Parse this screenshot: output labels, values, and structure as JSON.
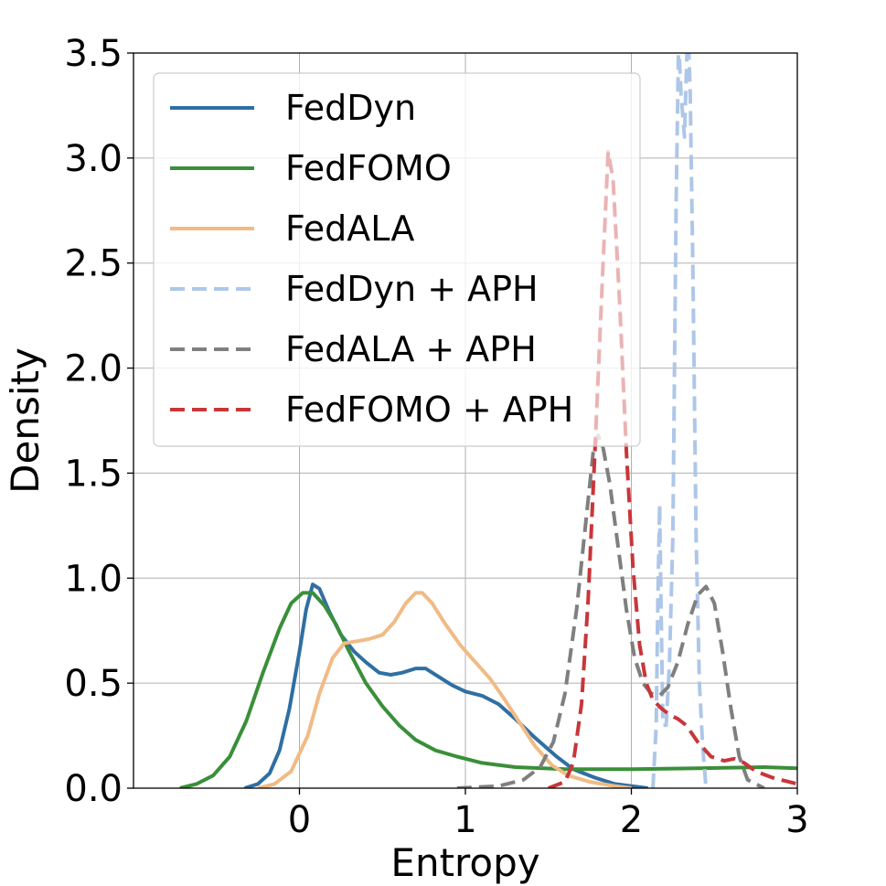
{
  "chart_data": {
    "type": "line",
    "title": "",
    "xlabel": "Entropy",
    "ylabel": "Density",
    "xlim": [
      -1.0,
      3.0
    ],
    "ylim": [
      0.0,
      3.5
    ],
    "grid": true,
    "legend_position": "top-left",
    "x_ticks": [
      0,
      1,
      2,
      3
    ],
    "x_tick_labels": [
      "0",
      "1",
      "2",
      "3"
    ],
    "y_ticks": [
      0.0,
      0.5,
      1.0,
      1.5,
      2.0,
      2.5,
      3.0,
      3.5
    ],
    "y_tick_labels": [
      "0.0",
      "0.5",
      "1.0",
      "1.5",
      "2.0",
      "2.5",
      "3.0",
      "3.5"
    ],
    "series": [
      {
        "name": "FedDyn",
        "color": "#2f6fa3",
        "dash": false,
        "opacity": 1.0,
        "points": [
          [
            -0.33,
            0.0
          ],
          [
            -0.25,
            0.02
          ],
          [
            -0.18,
            0.07
          ],
          [
            -0.12,
            0.18
          ],
          [
            -0.06,
            0.38
          ],
          [
            0.0,
            0.65
          ],
          [
            0.04,
            0.85
          ],
          [
            0.08,
            0.97
          ],
          [
            0.12,
            0.95
          ],
          [
            0.18,
            0.84
          ],
          [
            0.25,
            0.73
          ],
          [
            0.33,
            0.65
          ],
          [
            0.4,
            0.6
          ],
          [
            0.48,
            0.55
          ],
          [
            0.55,
            0.54
          ],
          [
            0.62,
            0.55
          ],
          [
            0.7,
            0.57
          ],
          [
            0.76,
            0.57
          ],
          [
            0.84,
            0.53
          ],
          [
            0.92,
            0.49
          ],
          [
            1.0,
            0.46
          ],
          [
            1.1,
            0.44
          ],
          [
            1.2,
            0.4
          ],
          [
            1.3,
            0.33
          ],
          [
            1.42,
            0.24
          ],
          [
            1.55,
            0.15
          ],
          [
            1.65,
            0.09
          ],
          [
            1.78,
            0.05
          ],
          [
            1.9,
            0.02
          ],
          [
            2.0,
            0.01
          ],
          [
            2.1,
            0.0
          ]
        ]
      },
      {
        "name": "FedFOMO",
        "color": "#3a8f3a",
        "dash": false,
        "opacity": 1.0,
        "points": [
          [
            -0.72,
            0.0
          ],
          [
            -0.62,
            0.02
          ],
          [
            -0.52,
            0.06
          ],
          [
            -0.42,
            0.15
          ],
          [
            -0.32,
            0.32
          ],
          [
            -0.22,
            0.55
          ],
          [
            -0.12,
            0.76
          ],
          [
            -0.05,
            0.88
          ],
          [
            0.02,
            0.93
          ],
          [
            0.08,
            0.93
          ],
          [
            0.15,
            0.87
          ],
          [
            0.22,
            0.78
          ],
          [
            0.3,
            0.65
          ],
          [
            0.4,
            0.5
          ],
          [
            0.5,
            0.39
          ],
          [
            0.6,
            0.3
          ],
          [
            0.7,
            0.23
          ],
          [
            0.82,
            0.18
          ],
          [
            0.95,
            0.15
          ],
          [
            1.1,
            0.12
          ],
          [
            1.3,
            0.1
          ],
          [
            1.6,
            0.09
          ],
          [
            2.0,
            0.09
          ],
          [
            2.4,
            0.095
          ],
          [
            2.8,
            0.1
          ],
          [
            3.0,
            0.095
          ]
        ]
      },
      {
        "name": "FedALA",
        "color": "#f0bb85",
        "dash": false,
        "opacity": 1.0,
        "points": [
          [
            -0.25,
            0.0
          ],
          [
            -0.15,
            0.02
          ],
          [
            -0.05,
            0.08
          ],
          [
            0.05,
            0.25
          ],
          [
            0.12,
            0.45
          ],
          [
            0.2,
            0.62
          ],
          [
            0.27,
            0.69
          ],
          [
            0.35,
            0.7
          ],
          [
            0.42,
            0.71
          ],
          [
            0.5,
            0.73
          ],
          [
            0.57,
            0.79
          ],
          [
            0.64,
            0.88
          ],
          [
            0.7,
            0.93
          ],
          [
            0.74,
            0.93
          ],
          [
            0.8,
            0.88
          ],
          [
            0.88,
            0.78
          ],
          [
            0.97,
            0.68
          ],
          [
            1.06,
            0.6
          ],
          [
            1.15,
            0.52
          ],
          [
            1.23,
            0.43
          ],
          [
            1.32,
            0.32
          ],
          [
            1.42,
            0.2
          ],
          [
            1.52,
            0.11
          ],
          [
            1.62,
            0.06
          ],
          [
            1.75,
            0.03
          ],
          [
            1.9,
            0.01
          ],
          [
            2.0,
            0.0
          ]
        ]
      },
      {
        "name": "FedDyn + APH",
        "color": "#aec7e8",
        "dash": true,
        "opacity": 1.0,
        "points": [
          [
            2.13,
            0.0
          ],
          [
            2.15,
            0.3
          ],
          [
            2.16,
            0.9
          ],
          [
            2.17,
            1.35
          ],
          [
            2.18,
            0.8
          ],
          [
            2.19,
            0.3
          ],
          [
            2.21,
            0.3
          ],
          [
            2.23,
            0.6
          ],
          [
            2.25,
            1.2
          ],
          [
            2.27,
            2.8
          ],
          [
            2.285,
            3.55
          ],
          [
            2.3,
            3.3
          ],
          [
            2.32,
            3.1
          ],
          [
            2.335,
            3.5
          ],
          [
            2.345,
            3.55
          ],
          [
            2.355,
            3.3
          ],
          [
            2.37,
            2.5
          ],
          [
            2.39,
            1.2
          ],
          [
            2.41,
            0.5
          ],
          [
            2.43,
            0.2
          ],
          [
            2.45,
            0.0
          ]
        ]
      },
      {
        "name": "FedALA + APH",
        "color": "#7f7f7f",
        "dash": true,
        "opacity": 1.0,
        "points": [
          [
            0.95,
            0.0
          ],
          [
            1.2,
            0.01
          ],
          [
            1.35,
            0.04
          ],
          [
            1.45,
            0.1
          ],
          [
            1.53,
            0.22
          ],
          [
            1.6,
            0.45
          ],
          [
            1.67,
            0.85
          ],
          [
            1.73,
            1.3
          ],
          [
            1.77,
            1.6
          ],
          [
            1.8,
            1.68
          ],
          [
            1.83,
            1.62
          ],
          [
            1.87,
            1.45
          ],
          [
            1.92,
            1.15
          ],
          [
            1.97,
            0.85
          ],
          [
            2.02,
            0.62
          ],
          [
            2.07,
            0.5
          ],
          [
            2.12,
            0.45
          ],
          [
            2.17,
            0.44
          ],
          [
            2.22,
            0.48
          ],
          [
            2.28,
            0.6
          ],
          [
            2.34,
            0.78
          ],
          [
            2.4,
            0.92
          ],
          [
            2.45,
            0.96
          ],
          [
            2.5,
            0.88
          ],
          [
            2.55,
            0.65
          ],
          [
            2.6,
            0.38
          ],
          [
            2.65,
            0.15
          ],
          [
            2.7,
            0.04
          ],
          [
            2.8,
            0.0
          ]
        ]
      },
      {
        "name": "FedFOMO + APH",
        "color": "#c8363a",
        "dash": true,
        "opacity": 1.0,
        "points": [
          [
            1.5,
            0.0
          ],
          [
            1.6,
            0.03
          ],
          [
            1.65,
            0.12
          ],
          [
            1.7,
            0.4
          ],
          [
            1.74,
            0.9
          ],
          [
            1.78,
            1.6
          ],
          [
            1.83,
            2.5
          ],
          [
            1.86,
            3.03
          ],
          [
            1.89,
            2.9
          ],
          [
            1.93,
            2.3
          ],
          [
            1.97,
            1.6
          ],
          [
            2.01,
            1.05
          ],
          [
            2.05,
            0.68
          ],
          [
            2.09,
            0.5
          ],
          [
            2.13,
            0.42
          ],
          [
            2.18,
            0.38
          ],
          [
            2.23,
            0.35
          ],
          [
            2.28,
            0.33
          ],
          [
            2.33,
            0.3
          ],
          [
            2.4,
            0.22
          ],
          [
            2.48,
            0.15
          ],
          [
            2.56,
            0.13
          ],
          [
            2.62,
            0.14
          ],
          [
            2.68,
            0.12
          ],
          [
            2.75,
            0.08
          ],
          [
            2.85,
            0.05
          ],
          [
            2.95,
            0.03
          ],
          [
            3.0,
            0.02
          ]
        ]
      }
    ],
    "faded_overlaps": [
      {
        "name": "FedFOMO + APH",
        "color": "#c8363a",
        "opacity": 0.22,
        "points": [
          [
            1.78,
            1.6
          ],
          [
            1.83,
            2.5
          ],
          [
            1.86,
            3.03
          ],
          [
            1.89,
            2.9
          ],
          [
            1.93,
            2.3
          ],
          [
            1.97,
            1.6
          ]
        ]
      }
    ]
  }
}
